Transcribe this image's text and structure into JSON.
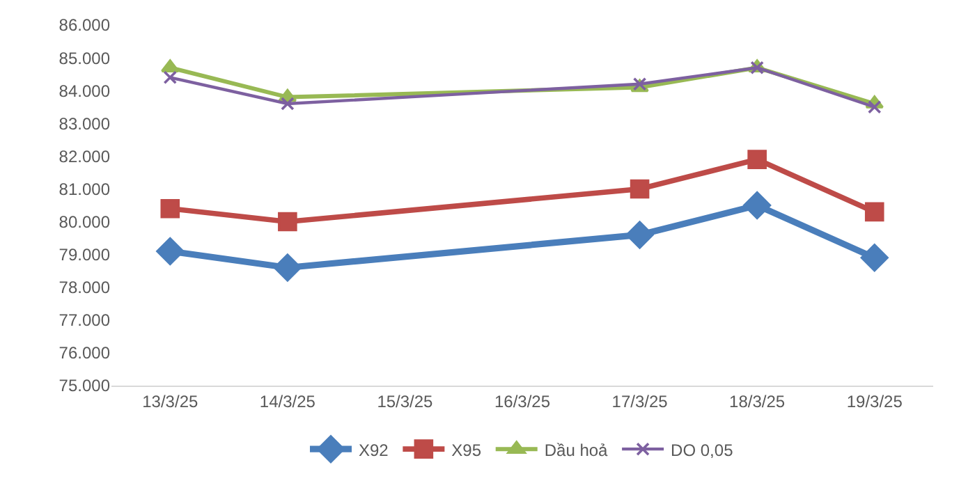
{
  "chart_data": {
    "type": "line",
    "categories": [
      "13/3/25",
      "14/3/25",
      "15/3/25",
      "16/3/25",
      "17/3/25",
      "18/3/25",
      "19/3/25"
    ],
    "series": [
      {
        "name": "X92",
        "color": "#4a7ebb",
        "marker": "diamond",
        "values": [
          79.1,
          78.6,
          null,
          null,
          79.6,
          80.5,
          78.9
        ]
      },
      {
        "name": "X95",
        "color": "#be4b48",
        "marker": "square",
        "values": [
          80.4,
          80.0,
          null,
          null,
          81.0,
          81.9,
          80.3
        ]
      },
      {
        "name": "Dầu hoả",
        "color": "#98b954",
        "marker": "triangle",
        "values": [
          84.7,
          83.8,
          null,
          null,
          84.1,
          84.7,
          83.6
        ]
      },
      {
        "name": "DO 0,05",
        "color": "#7d60a0",
        "marker": "cross",
        "values": [
          84.4,
          83.6,
          null,
          null,
          84.2,
          84.7,
          83.5
        ]
      }
    ],
    "ylim": [
      75,
      86
    ],
    "yticks": [
      {
        "value": 75,
        "label": "75.000"
      },
      {
        "value": 76,
        "label": "76.000"
      },
      {
        "value": 77,
        "label": "77.000"
      },
      {
        "value": 78,
        "label": "78.000"
      },
      {
        "value": 79,
        "label": "79.000"
      },
      {
        "value": 80,
        "label": "80.000"
      },
      {
        "value": 81,
        "label": "81.000"
      },
      {
        "value": 82,
        "label": "82.000"
      },
      {
        "value": 83,
        "label": "83.000"
      },
      {
        "value": 84,
        "label": "84.000"
      },
      {
        "value": 85,
        "label": "85.000"
      },
      {
        "value": 86,
        "label": "86.000"
      }
    ],
    "grid": false,
    "legend": "bottom"
  }
}
